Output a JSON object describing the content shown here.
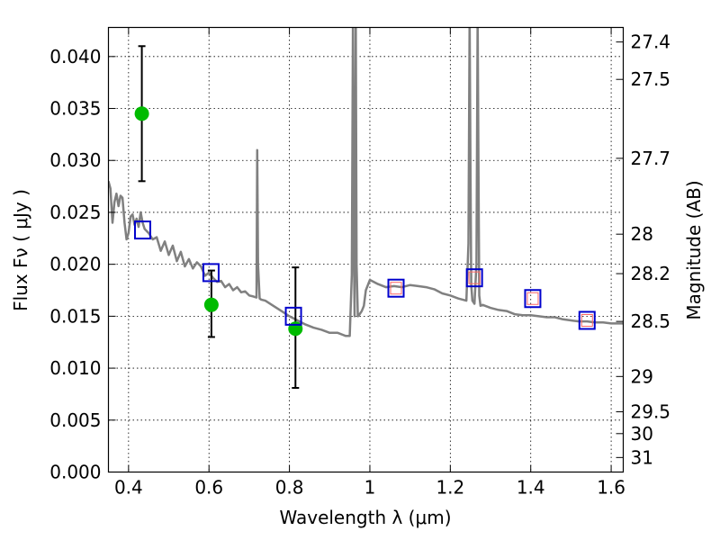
{
  "chart_data": {
    "type": "scatter",
    "xlabel": "Wavelength  λ (μm)",
    "ylabel": "Flux  Fν  ( μJy )",
    "y2label": "Magnitude (AB)",
    "xlim": [
      0.35,
      1.63
    ],
    "ylim": [
      0.0,
      0.0428
    ],
    "grid": true,
    "xticks": [
      0.4,
      0.6,
      0.8,
      1.0,
      1.2,
      1.4,
      1.6
    ],
    "xtick_labels": [
      "0.4",
      "0.6",
      "0.8",
      "1",
      "1.2",
      "1.4",
      "1.6"
    ],
    "yticks": [
      0.0,
      0.005,
      0.01,
      0.015,
      0.02,
      0.025,
      0.03,
      0.035,
      0.04
    ],
    "ytick_labels": [
      "0.000",
      "0.005",
      "0.010",
      "0.015",
      "0.020",
      "0.025",
      "0.030",
      "0.035",
      "0.040"
    ],
    "right_ticks": [
      {
        "label": "27.4",
        "flux": 0.0414
      },
      {
        "label": "27.5",
        "flux": 0.0378
      },
      {
        "label": "27.7",
        "flux": 0.0302
      },
      {
        "label": "28",
        "flux": 0.0229
      },
      {
        "label": "28.2",
        "flux": 0.0191
      },
      {
        "label": "28.5",
        "flux": 0.0145
      },
      {
        "label": "29",
        "flux": 0.0092
      },
      {
        "label": "29.5",
        "flux": 0.0058
      },
      {
        "label": "30",
        "flux": 0.0037
      },
      {
        "label": "31",
        "flux": 0.0014
      }
    ],
    "series": [
      {
        "kind": "line",
        "color": "#808080",
        "x": [
          0.35,
          0.355,
          0.36,
          0.365,
          0.37,
          0.375,
          0.38,
          0.385,
          0.39,
          0.395,
          0.4,
          0.405,
          0.41,
          0.415,
          0.42,
          0.425,
          0.43,
          0.435,
          0.44,
          0.445,
          0.45,
          0.46,
          0.47,
          0.48,
          0.49,
          0.5,
          0.51,
          0.52,
          0.53,
          0.54,
          0.55,
          0.56,
          0.57,
          0.58,
          0.59,
          0.6,
          0.61,
          0.62,
          0.63,
          0.64,
          0.65,
          0.66,
          0.67,
          0.68,
          0.69,
          0.7,
          0.71,
          0.718,
          0.72,
          0.722,
          0.726,
          0.73,
          0.74,
          0.76,
          0.78,
          0.8,
          0.82,
          0.84,
          0.86,
          0.88,
          0.9,
          0.92,
          0.94,
          0.95,
          0.955,
          0.958,
          0.96,
          0.962,
          0.965,
          0.967,
          0.97,
          0.973,
          0.98,
          0.985,
          0.99,
          1.0,
          1.02,
          1.04,
          1.06,
          1.08,
          1.1,
          1.12,
          1.14,
          1.16,
          1.18,
          1.2,
          1.22,
          1.24,
          1.245,
          1.248,
          1.25,
          1.252,
          1.255,
          1.26,
          1.265,
          1.268,
          1.27,
          1.272,
          1.275,
          1.28,
          1.3,
          1.32,
          1.34,
          1.36,
          1.38,
          1.4,
          1.42,
          1.44,
          1.46,
          1.48,
          1.5,
          1.52,
          1.54,
          1.56,
          1.58,
          1.6,
          1.63
        ],
        "y": [
          0.028,
          0.0273,
          0.024,
          0.026,
          0.0268,
          0.0256,
          0.0266,
          0.0264,
          0.024,
          0.0224,
          0.023,
          0.0246,
          0.0248,
          0.0238,
          0.0244,
          0.0236,
          0.025,
          0.024,
          0.0234,
          0.0232,
          0.023,
          0.0224,
          0.0226,
          0.0213,
          0.0222,
          0.0209,
          0.0218,
          0.0203,
          0.0212,
          0.0198,
          0.0205,
          0.0196,
          0.0202,
          0.0198,
          0.0189,
          0.0192,
          0.0187,
          0.0183,
          0.0184,
          0.0178,
          0.0181,
          0.0175,
          0.0178,
          0.0173,
          0.0174,
          0.017,
          0.0169,
          0.0168,
          0.031,
          0.02,
          0.0167,
          0.0166,
          0.0165,
          0.016,
          0.0155,
          0.015,
          0.0146,
          0.0142,
          0.0139,
          0.0137,
          0.0134,
          0.0134,
          0.0131,
          0.0131,
          0.019,
          0.044,
          0.022,
          0.015,
          0.044,
          0.02,
          0.015,
          0.0151,
          0.0155,
          0.016,
          0.0175,
          0.0185,
          0.0181,
          0.0178,
          0.0179,
          0.0178,
          0.018,
          0.0179,
          0.0178,
          0.0176,
          0.0172,
          0.017,
          0.0167,
          0.0165,
          0.022,
          0.044,
          0.03,
          0.018,
          0.0165,
          0.0162,
          0.02,
          0.044,
          0.03,
          0.017,
          0.016,
          0.0161,
          0.0158,
          0.0156,
          0.0155,
          0.0152,
          0.0151,
          0.0151,
          0.015,
          0.0149,
          0.0149,
          0.0147,
          0.0146,
          0.0145,
          0.0145,
          0.0144,
          0.0144,
          0.0143,
          0.0143
        ]
      },
      {
        "kind": "points",
        "marker": "circle",
        "color": "#00bb00",
        "x": [
          0.433,
          0.606,
          0.815
        ],
        "y": [
          0.0345,
          0.0161,
          0.0138
        ],
        "yerr_low": [
          0.028,
          0.013,
          0.0081
        ],
        "yerr_high": [
          0.041,
          0.0194,
          0.0197
        ]
      },
      {
        "kind": "points",
        "marker": "square",
        "color": "#0000cc",
        "x": [
          0.435,
          0.605,
          0.81,
          1.065,
          1.26,
          1.405,
          1.54
        ],
        "y": [
          0.0233,
          0.0192,
          0.015,
          0.0177,
          0.0187,
          0.0167,
          0.0146
        ]
      },
      {
        "kind": "points",
        "marker": "small-square",
        "color": "#ff6666",
        "x": [
          1.065,
          1.26,
          1.405,
          1.54
        ],
        "y": [
          0.0177,
          0.0187,
          0.0167,
          0.0146
        ]
      }
    ]
  }
}
